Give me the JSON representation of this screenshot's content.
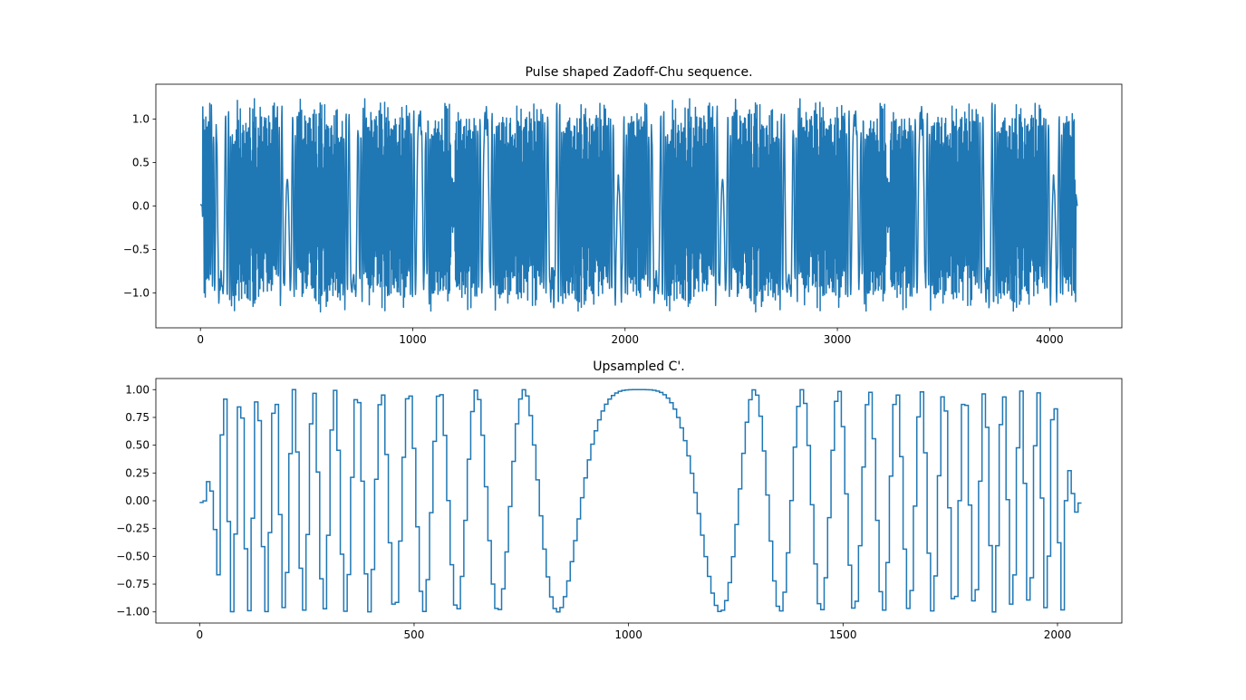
{
  "figure": {
    "background": "#ffffff",
    "line_color": "#1f77b4"
  },
  "chart_data": [
    {
      "type": "line",
      "title": "Pulse shaped Zadoff-Chu sequence.",
      "xlabel": "",
      "ylabel": "",
      "xlim": [
        -210,
        4340
      ],
      "ylim": [
        -1.4,
        1.4
      ],
      "grid": false,
      "legend": "none",
      "xticks": [
        0,
        1000,
        2000,
        3000,
        4000
      ],
      "xtick_labels": [
        "0",
        "1000",
        "2000",
        "3000",
        "4000"
      ],
      "yticks": [
        -1.0,
        -0.5,
        0.0,
        0.5,
        1.0
      ],
      "ytick_labels": [
        "−1.0",
        "−0.5",
        "0.0",
        "0.5",
        "1.0"
      ],
      "series": [
        {
          "signal": "zadoff-chu pulse shaped, two periods",
          "x_start": 0,
          "x_end": 4130,
          "period_samples": 2050,
          "leading_zeros": 8,
          "peak_amplitude": 1.27,
          "trough_amplitude": -1.27
        }
      ]
    },
    {
      "type": "line",
      "title": "Upsampled C'.",
      "xlabel": "",
      "ylabel": "",
      "xlim": [
        -102,
        2150
      ],
      "ylim": [
        -1.1,
        1.1
      ],
      "grid": false,
      "legend": "none",
      "xticks": [
        0,
        500,
        1000,
        1500,
        2000
      ],
      "xtick_labels": [
        "0",
        "500",
        "1000",
        "1500",
        "2000"
      ],
      "yticks": [
        -1.0,
        -0.75,
        -0.5,
        -0.25,
        0.0,
        0.25,
        0.5,
        0.75,
        1.0
      ],
      "ytick_labels": [
        "−1.00",
        "−0.75",
        "−0.50",
        "−0.25",
        "0.00",
        "0.25",
        "0.50",
        "0.75",
        "1.00"
      ],
      "series": [
        {
          "signal": "upsampled zadoff-chu real part, step hold",
          "x_start": 0,
          "x_end": 2050,
          "hold_samples": 8,
          "peak_amplitude": 1.0,
          "trough_amplitude": -1.0
        }
      ]
    }
  ]
}
